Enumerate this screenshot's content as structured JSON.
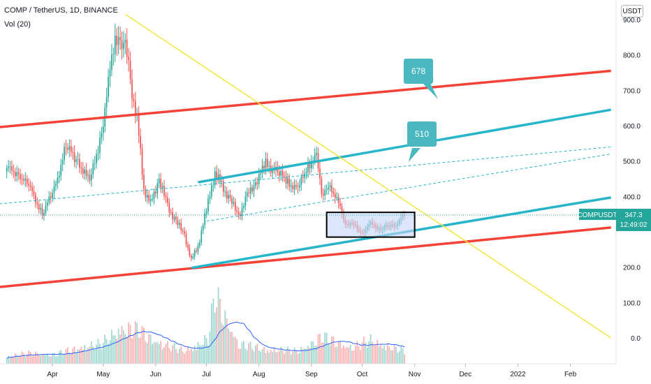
{
  "header": {
    "symbol_title": "COMP / TetherUS, 1D, BINANCE",
    "volume_label": "Vol (20)",
    "unit_button": "USDT"
  },
  "price_tag": {
    "symbol": "COMPUSDT",
    "price": "347.3",
    "countdown": "12:49:02"
  },
  "callouts": [
    {
      "label": "678"
    },
    {
      "label": "510"
    }
  ],
  "colors": {
    "up": "#26a69a",
    "down": "#ef5350",
    "red_line": "#f44336",
    "cyan_line": "#26b5c9",
    "yellow_line": "#f5e63c",
    "callout": "#4ab8c1",
    "vol_ma": "#2962ff",
    "highlight_box": "#c4d6f7",
    "price_tag": "#26a69a"
  },
  "chart_data": {
    "type": "candlestick",
    "title": "COMP / TetherUS, 1D, BINANCE",
    "y_unit": "USDT",
    "ylim": [
      -20,
      930
    ],
    "yticks": [
      "900.0",
      "800.0",
      "700.0",
      "600.0",
      "500.0",
      "400.0",
      "300.0",
      "200.0",
      "100.0",
      "0.0"
    ],
    "xticks": [
      "Apr",
      "May",
      "Jun",
      "Jul",
      "Aug",
      "Sep",
      "Oct",
      "Nov",
      "Dec",
      "2022",
      "Feb"
    ],
    "grid": false,
    "last_price": 347.3,
    "close_series": [
      {
        "date": "2021-03-05",
        "close": 480
      },
      {
        "date": "2021-03-12",
        "close": 465
      },
      {
        "date": "2021-03-19",
        "close": 420
      },
      {
        "date": "2021-03-26",
        "close": 350
      },
      {
        "date": "2021-04-02",
        "close": 420
      },
      {
        "date": "2021-04-09",
        "close": 540
      },
      {
        "date": "2021-04-16",
        "close": 500
      },
      {
        "date": "2021-04-23",
        "close": 440
      },
      {
        "date": "2021-04-30",
        "close": 580
      },
      {
        "date": "2021-05-04",
        "close": 720
      },
      {
        "date": "2021-05-08",
        "close": 860
      },
      {
        "date": "2021-05-11",
        "close": 820
      },
      {
        "date": "2021-05-14",
        "close": 840
      },
      {
        "date": "2021-05-17",
        "close": 720
      },
      {
        "date": "2021-05-21",
        "close": 620
      },
      {
        "date": "2021-05-25",
        "close": 420
      },
      {
        "date": "2021-05-29",
        "close": 380
      },
      {
        "date": "2021-06-03",
        "close": 450
      },
      {
        "date": "2021-06-08",
        "close": 370
      },
      {
        "date": "2021-06-13",
        "close": 330
      },
      {
        "date": "2021-06-18",
        "close": 290
      },
      {
        "date": "2021-06-22",
        "close": 220
      },
      {
        "date": "2021-06-26",
        "close": 260
      },
      {
        "date": "2021-07-02",
        "close": 380
      },
      {
        "date": "2021-07-06",
        "close": 470
      },
      {
        "date": "2021-07-10",
        "close": 430
      },
      {
        "date": "2021-07-15",
        "close": 390
      },
      {
        "date": "2021-07-20",
        "close": 345
      },
      {
        "date": "2021-07-25",
        "close": 400
      },
      {
        "date": "2021-07-30",
        "close": 440
      },
      {
        "date": "2021-08-05",
        "close": 490
      },
      {
        "date": "2021-08-12",
        "close": 470
      },
      {
        "date": "2021-08-18",
        "close": 440
      },
      {
        "date": "2021-08-24",
        "close": 420
      },
      {
        "date": "2021-08-30",
        "close": 490
      },
      {
        "date": "2021-09-04",
        "close": 510
      },
      {
        "date": "2021-09-07",
        "close": 410
      },
      {
        "date": "2021-09-12",
        "close": 420
      },
      {
        "date": "2021-09-16",
        "close": 400
      },
      {
        "date": "2021-09-20",
        "close": 330
      },
      {
        "date": "2021-09-25",
        "close": 320
      },
      {
        "date": "2021-10-01",
        "close": 300
      },
      {
        "date": "2021-10-06",
        "close": 320
      },
      {
        "date": "2021-10-12",
        "close": 310
      },
      {
        "date": "2021-10-18",
        "close": 315
      },
      {
        "date": "2021-10-22",
        "close": 325
      },
      {
        "date": "2021-10-26",
        "close": 347.3
      }
    ],
    "volume_series": [
      {
        "date": "2021-03-05",
        "volume": 20
      },
      {
        "date": "2021-03-19",
        "volume": 30
      },
      {
        "date": "2021-04-02",
        "volume": 25
      },
      {
        "date": "2021-04-16",
        "volume": 45
      },
      {
        "date": "2021-04-30",
        "volume": 55
      },
      {
        "date": "2021-05-11",
        "volume": 100
      },
      {
        "date": "2021-05-21",
        "volume": 95
      },
      {
        "date": "2021-06-03",
        "volume": 60
      },
      {
        "date": "2021-06-18",
        "volume": 35
      },
      {
        "date": "2021-07-02",
        "volume": 70
      },
      {
        "date": "2021-07-06",
        "volume": 190
      },
      {
        "date": "2021-07-20",
        "volume": 55
      },
      {
        "date": "2021-08-05",
        "volume": 40
      },
      {
        "date": "2021-08-24",
        "volume": 35
      },
      {
        "date": "2021-09-07",
        "volume": 75
      },
      {
        "date": "2021-09-25",
        "volume": 45
      },
      {
        "date": "2021-10-06",
        "volume": 65
      },
      {
        "date": "2021-10-26",
        "volume": 35
      }
    ],
    "trendlines": [
      {
        "name": "red upper",
        "style": "solid",
        "start": {
          "date": "2021-02-20",
          "price": 592
        },
        "end": {
          "date": "2022-02-25",
          "price": 755
        }
      },
      {
        "name": "red lower",
        "style": "solid",
        "start": {
          "date": "2021-02-20",
          "price": 140
        },
        "end": {
          "date": "2022-02-25",
          "price": 312
        }
      },
      {
        "name": "cyan upper",
        "style": "solid",
        "start": {
          "date": "2021-06-26",
          "price": 440
        },
        "end": {
          "date": "2022-02-25",
          "price": 645
        }
      },
      {
        "name": "cyan lower",
        "style": "solid",
        "start": {
          "date": "2021-06-22",
          "price": 198
        },
        "end": {
          "date": "2022-02-25",
          "price": 397
        }
      },
      {
        "name": "dashed upper",
        "style": "dashed",
        "start": {
          "date": "2021-02-20",
          "price": 375
        },
        "end": {
          "date": "2022-02-25",
          "price": 540
        }
      },
      {
        "name": "dashed lower",
        "style": "dashed",
        "start": {
          "date": "2021-07-01",
          "price": 330
        },
        "end": {
          "date": "2022-02-25",
          "price": 520
        }
      },
      {
        "name": "yellow",
        "style": "solid",
        "start": {
          "date": "2021-05-14",
          "price": 915
        },
        "end": {
          "date": "2022-02-25",
          "price": 0
        }
      }
    ],
    "range_box": {
      "start": "2021-09-10",
      "end": "2021-11-01",
      "top": 355,
      "bottom": 285
    }
  }
}
